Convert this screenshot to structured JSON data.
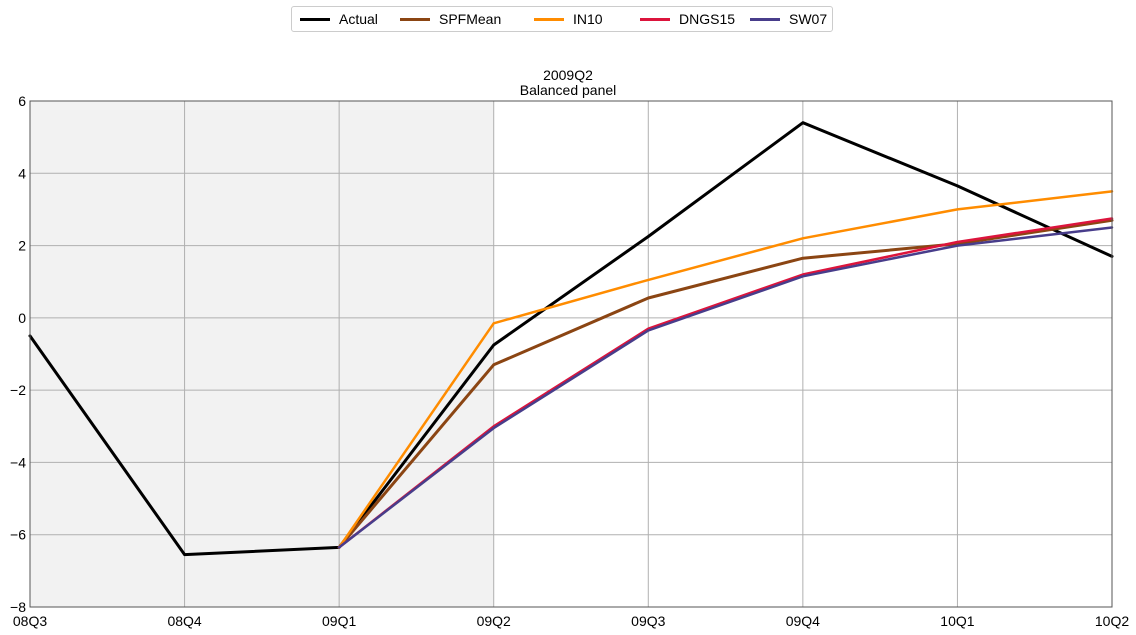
{
  "chart_data": {
    "type": "line",
    "title": "2009Q2",
    "subtitle": "Balanced panel",
    "xlabel": "",
    "ylabel": "",
    "categories": [
      "08Q3",
      "08Q4",
      "09Q1",
      "09Q2",
      "09Q3",
      "09Q4",
      "10Q1",
      "10Q2"
    ],
    "ylim": [
      -8,
      6
    ],
    "yticks": [
      "−8",
      "−6",
      "−4",
      "−2",
      "0",
      "2",
      "4",
      "6"
    ],
    "ytick_values": [
      -8,
      -6,
      -4,
      -2,
      0,
      2,
      4,
      6
    ],
    "grid": true,
    "legend_position": "top-center",
    "shaded_region": {
      "from": "08Q3",
      "to": "09Q2",
      "color": "#f2f2f2"
    },
    "series": [
      {
        "name": "Actual",
        "color": "#000000",
        "width": 3,
        "values": [
          -0.5,
          -6.55,
          -6.35,
          -0.75,
          2.25,
          5.4,
          3.65,
          1.7
        ]
      },
      {
        "name": "SPFMean",
        "color": "#8b4513",
        "width": 3,
        "values": [
          null,
          null,
          -6.35,
          -1.3,
          0.55,
          1.65,
          2.05,
          2.7
        ]
      },
      {
        "name": "IN10",
        "color": "#ff8c00",
        "width": 2.5,
        "values": [
          null,
          null,
          -6.35,
          -0.15,
          1.05,
          2.2,
          3.0,
          3.5
        ]
      },
      {
        "name": "DNGS15",
        "color": "#dc143c",
        "width": 2.5,
        "values": [
          null,
          null,
          -6.35,
          -3.0,
          -0.3,
          1.2,
          2.1,
          2.75
        ]
      },
      {
        "name": "SW07",
        "color": "#483d8b",
        "width": 2.5,
        "values": [
          null,
          null,
          -6.35,
          -3.05,
          -0.35,
          1.15,
          2.0,
          2.5
        ]
      }
    ]
  }
}
